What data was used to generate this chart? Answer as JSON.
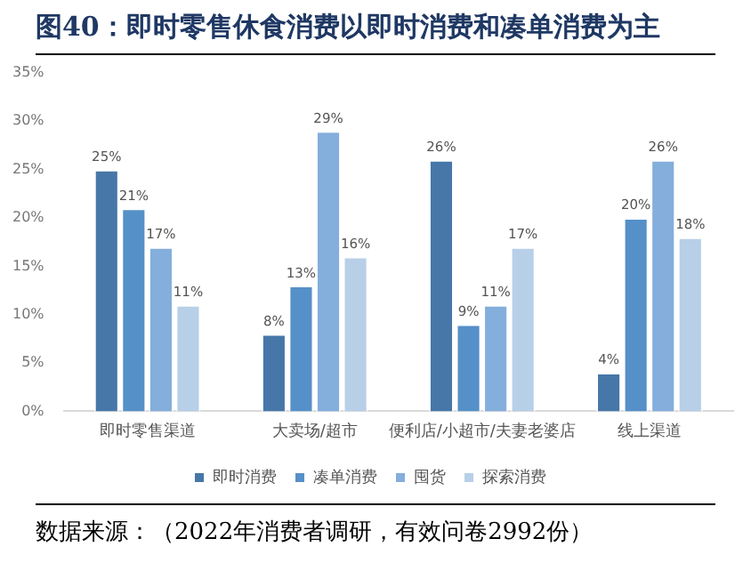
{
  "chart_data": {
    "type": "bar",
    "title": "图40：即时零售休食消费以即时消费和凑单消费为主",
    "categories": [
      "即时零售渠道",
      "大卖场/超市",
      "便利店/小超市/夫妻老婆店",
      "线上渠道"
    ],
    "series": [
      {
        "name": "即时消费",
        "color": "#4677a8",
        "values": [
          25,
          8,
          26,
          4
        ],
        "value_labels": [
          "25%",
          "8%",
          "26%",
          "4%"
        ]
      },
      {
        "name": "凑单消费",
        "color": "#5590c8",
        "values": [
          21,
          13,
          9,
          20
        ],
        "value_labels": [
          "21%",
          "13%",
          "9%",
          "20%"
        ]
      },
      {
        "name": "囤货",
        "color": "#84aedc",
        "values": [
          17,
          29,
          11,
          26
        ],
        "value_labels": [
          "17%",
          "29%",
          "11%",
          "26%"
        ]
      },
      {
        "name": "探索消费",
        "color": "#b8cfe8",
        "values": [
          11,
          16,
          17,
          18
        ],
        "value_labels": [
          "11%",
          "16%",
          "17%",
          "18%"
        ]
      }
    ],
    "ylim": [
      0,
      35
    ],
    "yticks": [
      {
        "value": 0,
        "label": "0%"
      },
      {
        "value": 5,
        "label": "5%"
      },
      {
        "value": 10,
        "label": "10%"
      },
      {
        "value": 15,
        "label": "15%"
      },
      {
        "value": 20,
        "label": "20%"
      },
      {
        "value": 25,
        "label": "25%"
      },
      {
        "value": 30,
        "label": "30%"
      },
      {
        "value": 35,
        "label": "35%"
      }
    ],
    "grid": false,
    "legend": "bottom",
    "annotations": [
      "数据来源：（2022年消费者调研，有效问卷2992份）"
    ]
  }
}
